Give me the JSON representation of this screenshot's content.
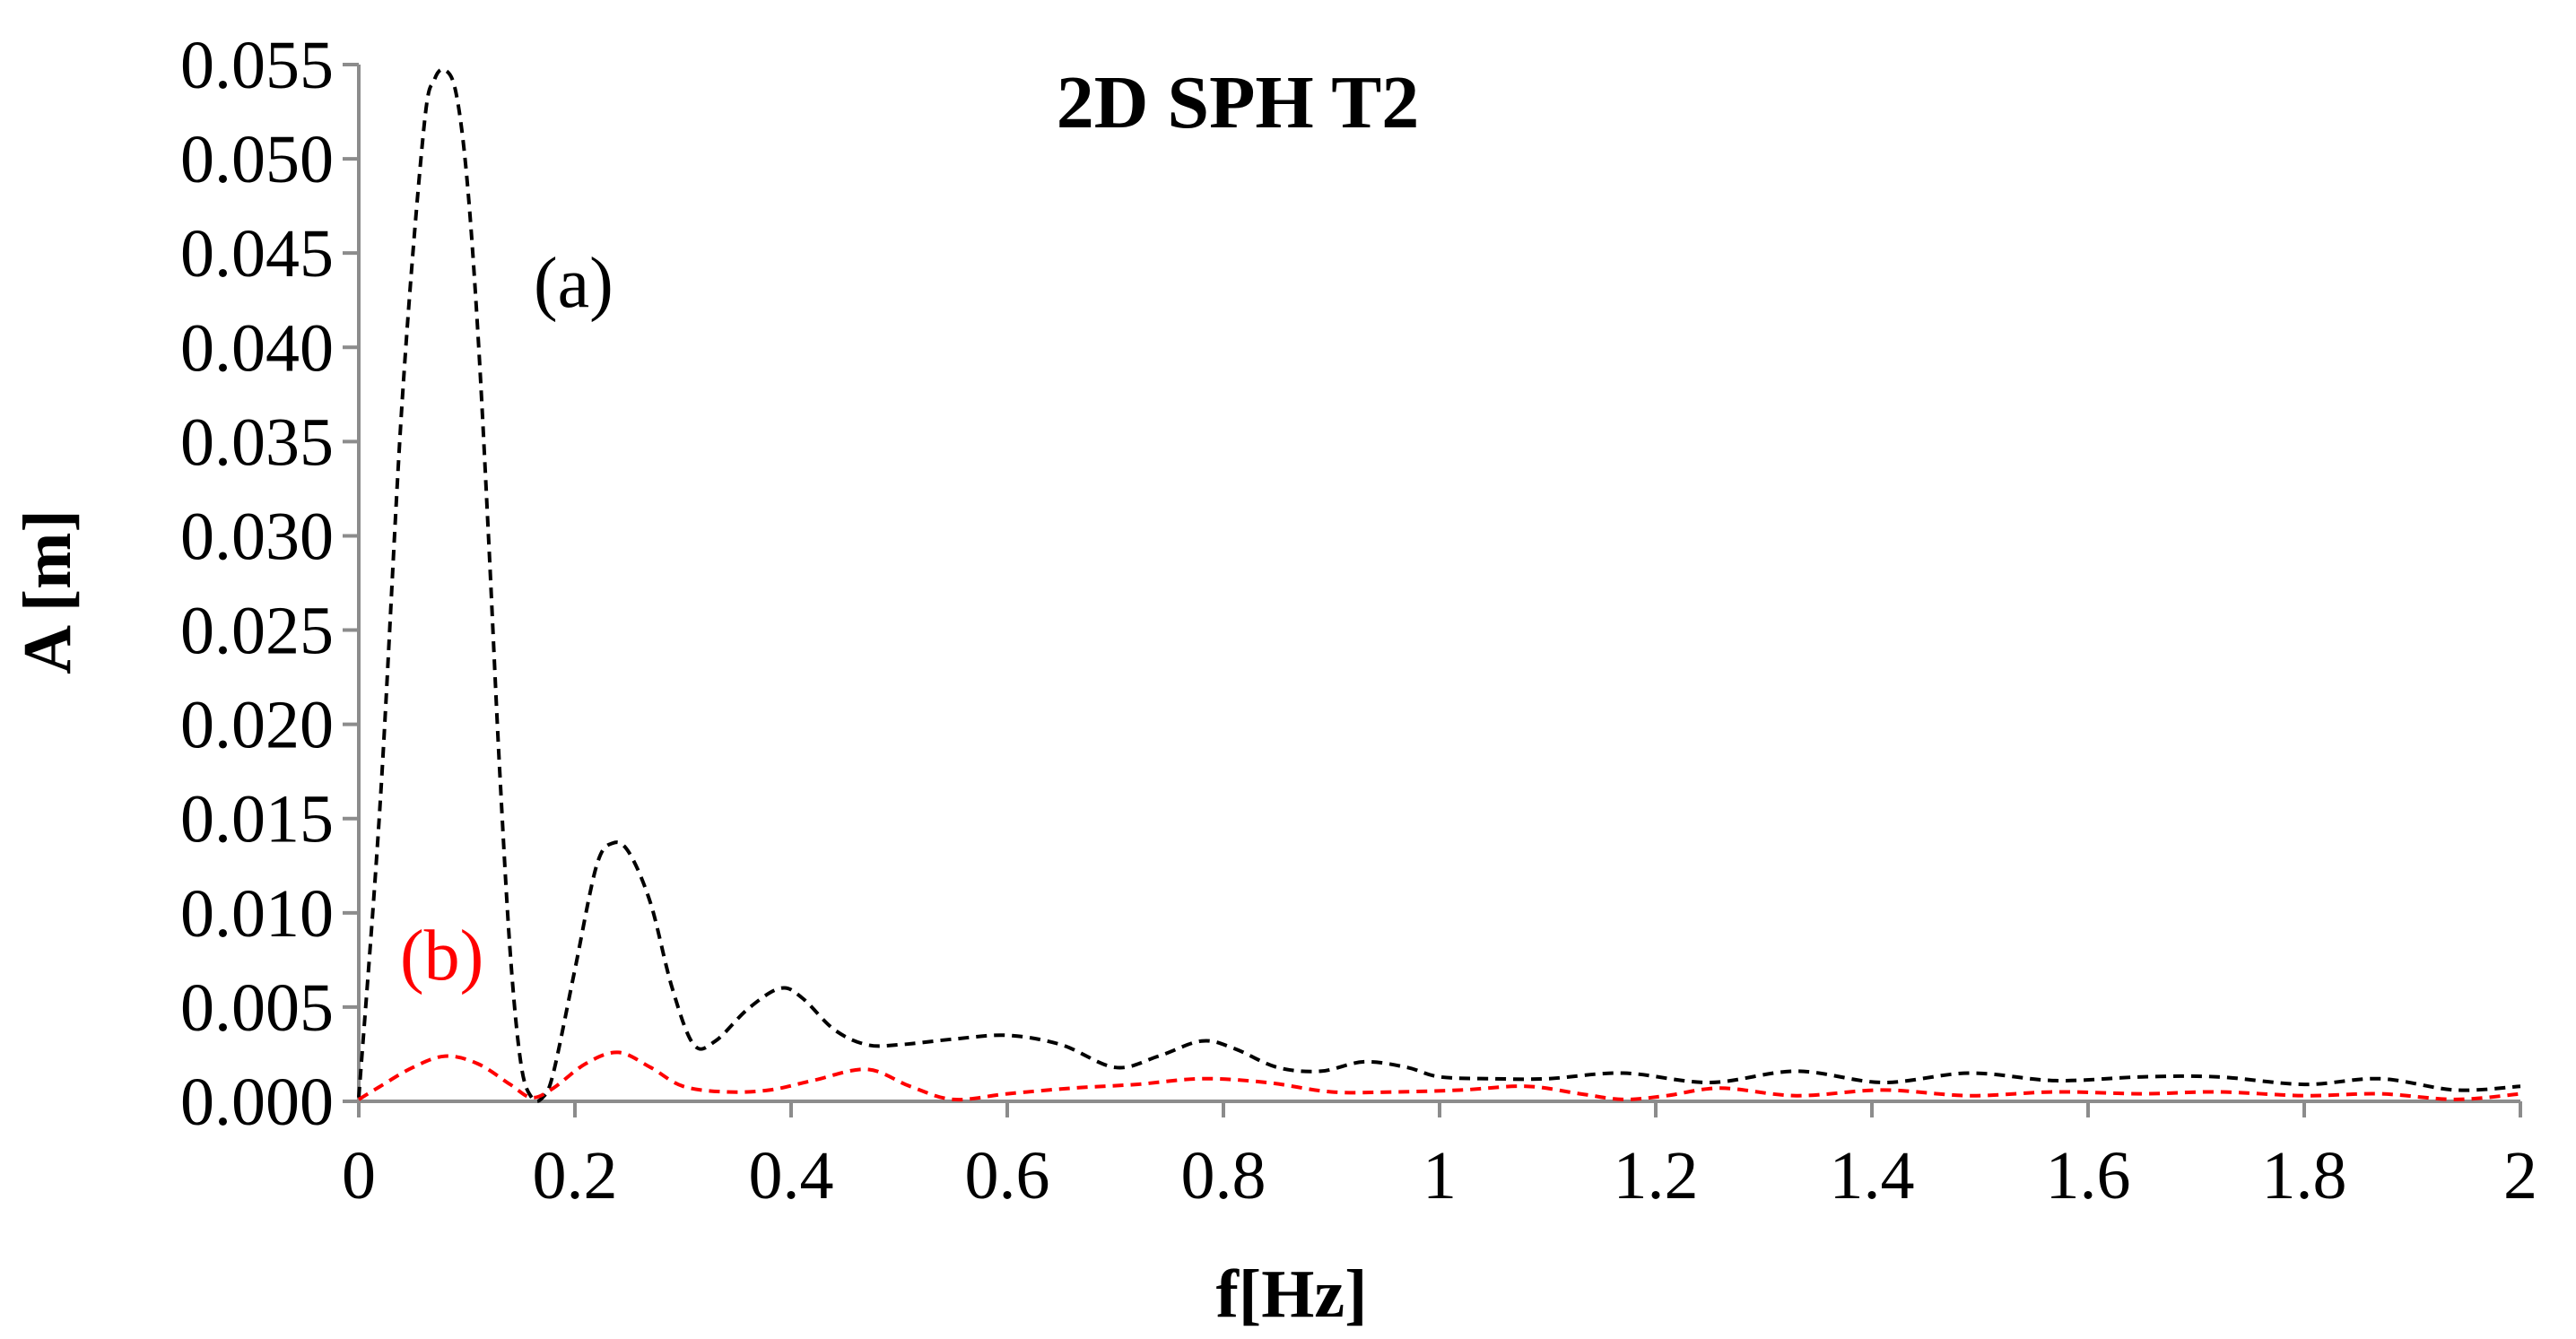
{
  "chart_data": {
    "type": "line",
    "title": "2D SPH T2",
    "xlabel": "f[Hz]",
    "ylabel": "A [m]",
    "xlim": [
      0,
      2
    ],
    "ylim": [
      0,
      0.055
    ],
    "x_ticks": [
      "0",
      "0.2",
      "0.4",
      "0.6",
      "0.8",
      "1",
      "1.2",
      "1.4",
      "1.6",
      "1.8",
      "2"
    ],
    "y_ticks": [
      "0.000",
      "0.005",
      "0.010",
      "0.015",
      "0.020",
      "0.025",
      "0.030",
      "0.035",
      "0.040",
      "0.045",
      "0.050",
      "0.055"
    ],
    "grid": false,
    "legend": "none",
    "annotations": [
      {
        "text": "(a)",
        "color": "#000000"
      },
      {
        "text": "(b)",
        "color": "#ff0000"
      }
    ],
    "series": [
      {
        "label": "(a)",
        "color": "#000000",
        "style": "dashed",
        "x": [
          0,
          0.02,
          0.04,
          0.06,
          0.07,
          0.08,
          0.09,
          0.1,
          0.11,
          0.12,
          0.13,
          0.14,
          0.15,
          0.16,
          0.17,
          0.18,
          0.2,
          0.22,
          0.235,
          0.25,
          0.27,
          0.29,
          0.31,
          0.33,
          0.36,
          0.39,
          0.41,
          0.44,
          0.47,
          0.5,
          0.55,
          0.6,
          0.65,
          0.7,
          0.74,
          0.78,
          0.81,
          0.85,
          0.89,
          0.93,
          0.97,
          1.0,
          1.05,
          1.1,
          1.17,
          1.25,
          1.33,
          1.41,
          1.49,
          1.57,
          1.65,
          1.72,
          1.8,
          1.87,
          1.94,
          2.0
        ],
        "y": [
          0.0002,
          0.016,
          0.037,
          0.0515,
          0.0542,
          0.0547,
          0.0535,
          0.049,
          0.041,
          0.03,
          0.018,
          0.008,
          0.002,
          0.0002,
          0.0002,
          0.0015,
          0.007,
          0.0125,
          0.0137,
          0.0132,
          0.0105,
          0.006,
          0.003,
          0.0032,
          0.0049,
          0.006,
          0.0055,
          0.0038,
          0.003,
          0.003,
          0.0033,
          0.0035,
          0.003,
          0.0018,
          0.0024,
          0.0032,
          0.0028,
          0.0018,
          0.0016,
          0.0021,
          0.0018,
          0.0013,
          0.0012,
          0.0012,
          0.0015,
          0.001,
          0.0016,
          0.001,
          0.0015,
          0.0011,
          0.0013,
          0.0013,
          0.0009,
          0.0012,
          0.0006,
          0.0008
        ]
      },
      {
        "label": "(b)",
        "color": "#ff0000",
        "style": "dashed",
        "x": [
          0,
          0.02,
          0.05,
          0.08,
          0.11,
          0.14,
          0.16,
          0.18,
          0.21,
          0.24,
          0.27,
          0.3,
          0.34,
          0.38,
          0.42,
          0.47,
          0.51,
          0.55,
          0.6,
          0.66,
          0.72,
          0.78,
          0.84,
          0.9,
          0.96,
          1.02,
          1.08,
          1.13,
          1.17,
          1.21,
          1.26,
          1.33,
          1.41,
          1.49,
          1.57,
          1.65,
          1.72,
          1.8,
          1.87,
          1.94,
          2.0
        ],
        "y": [
          0.0001,
          0.0008,
          0.0018,
          0.0024,
          0.002,
          0.0009,
          0.0002,
          0.0007,
          0.002,
          0.0026,
          0.0018,
          0.0008,
          0.0005,
          0.0006,
          0.0011,
          0.0017,
          0.0008,
          0.0001,
          0.0004,
          0.0007,
          0.0009,
          0.0012,
          0.001,
          0.0005,
          0.0005,
          0.0006,
          0.0008,
          0.0004,
          0.0001,
          0.0003,
          0.0007,
          0.0003,
          0.0006,
          0.0003,
          0.0005,
          0.0004,
          0.0005,
          0.0003,
          0.0004,
          0.0001,
          0.0004
        ]
      }
    ]
  }
}
